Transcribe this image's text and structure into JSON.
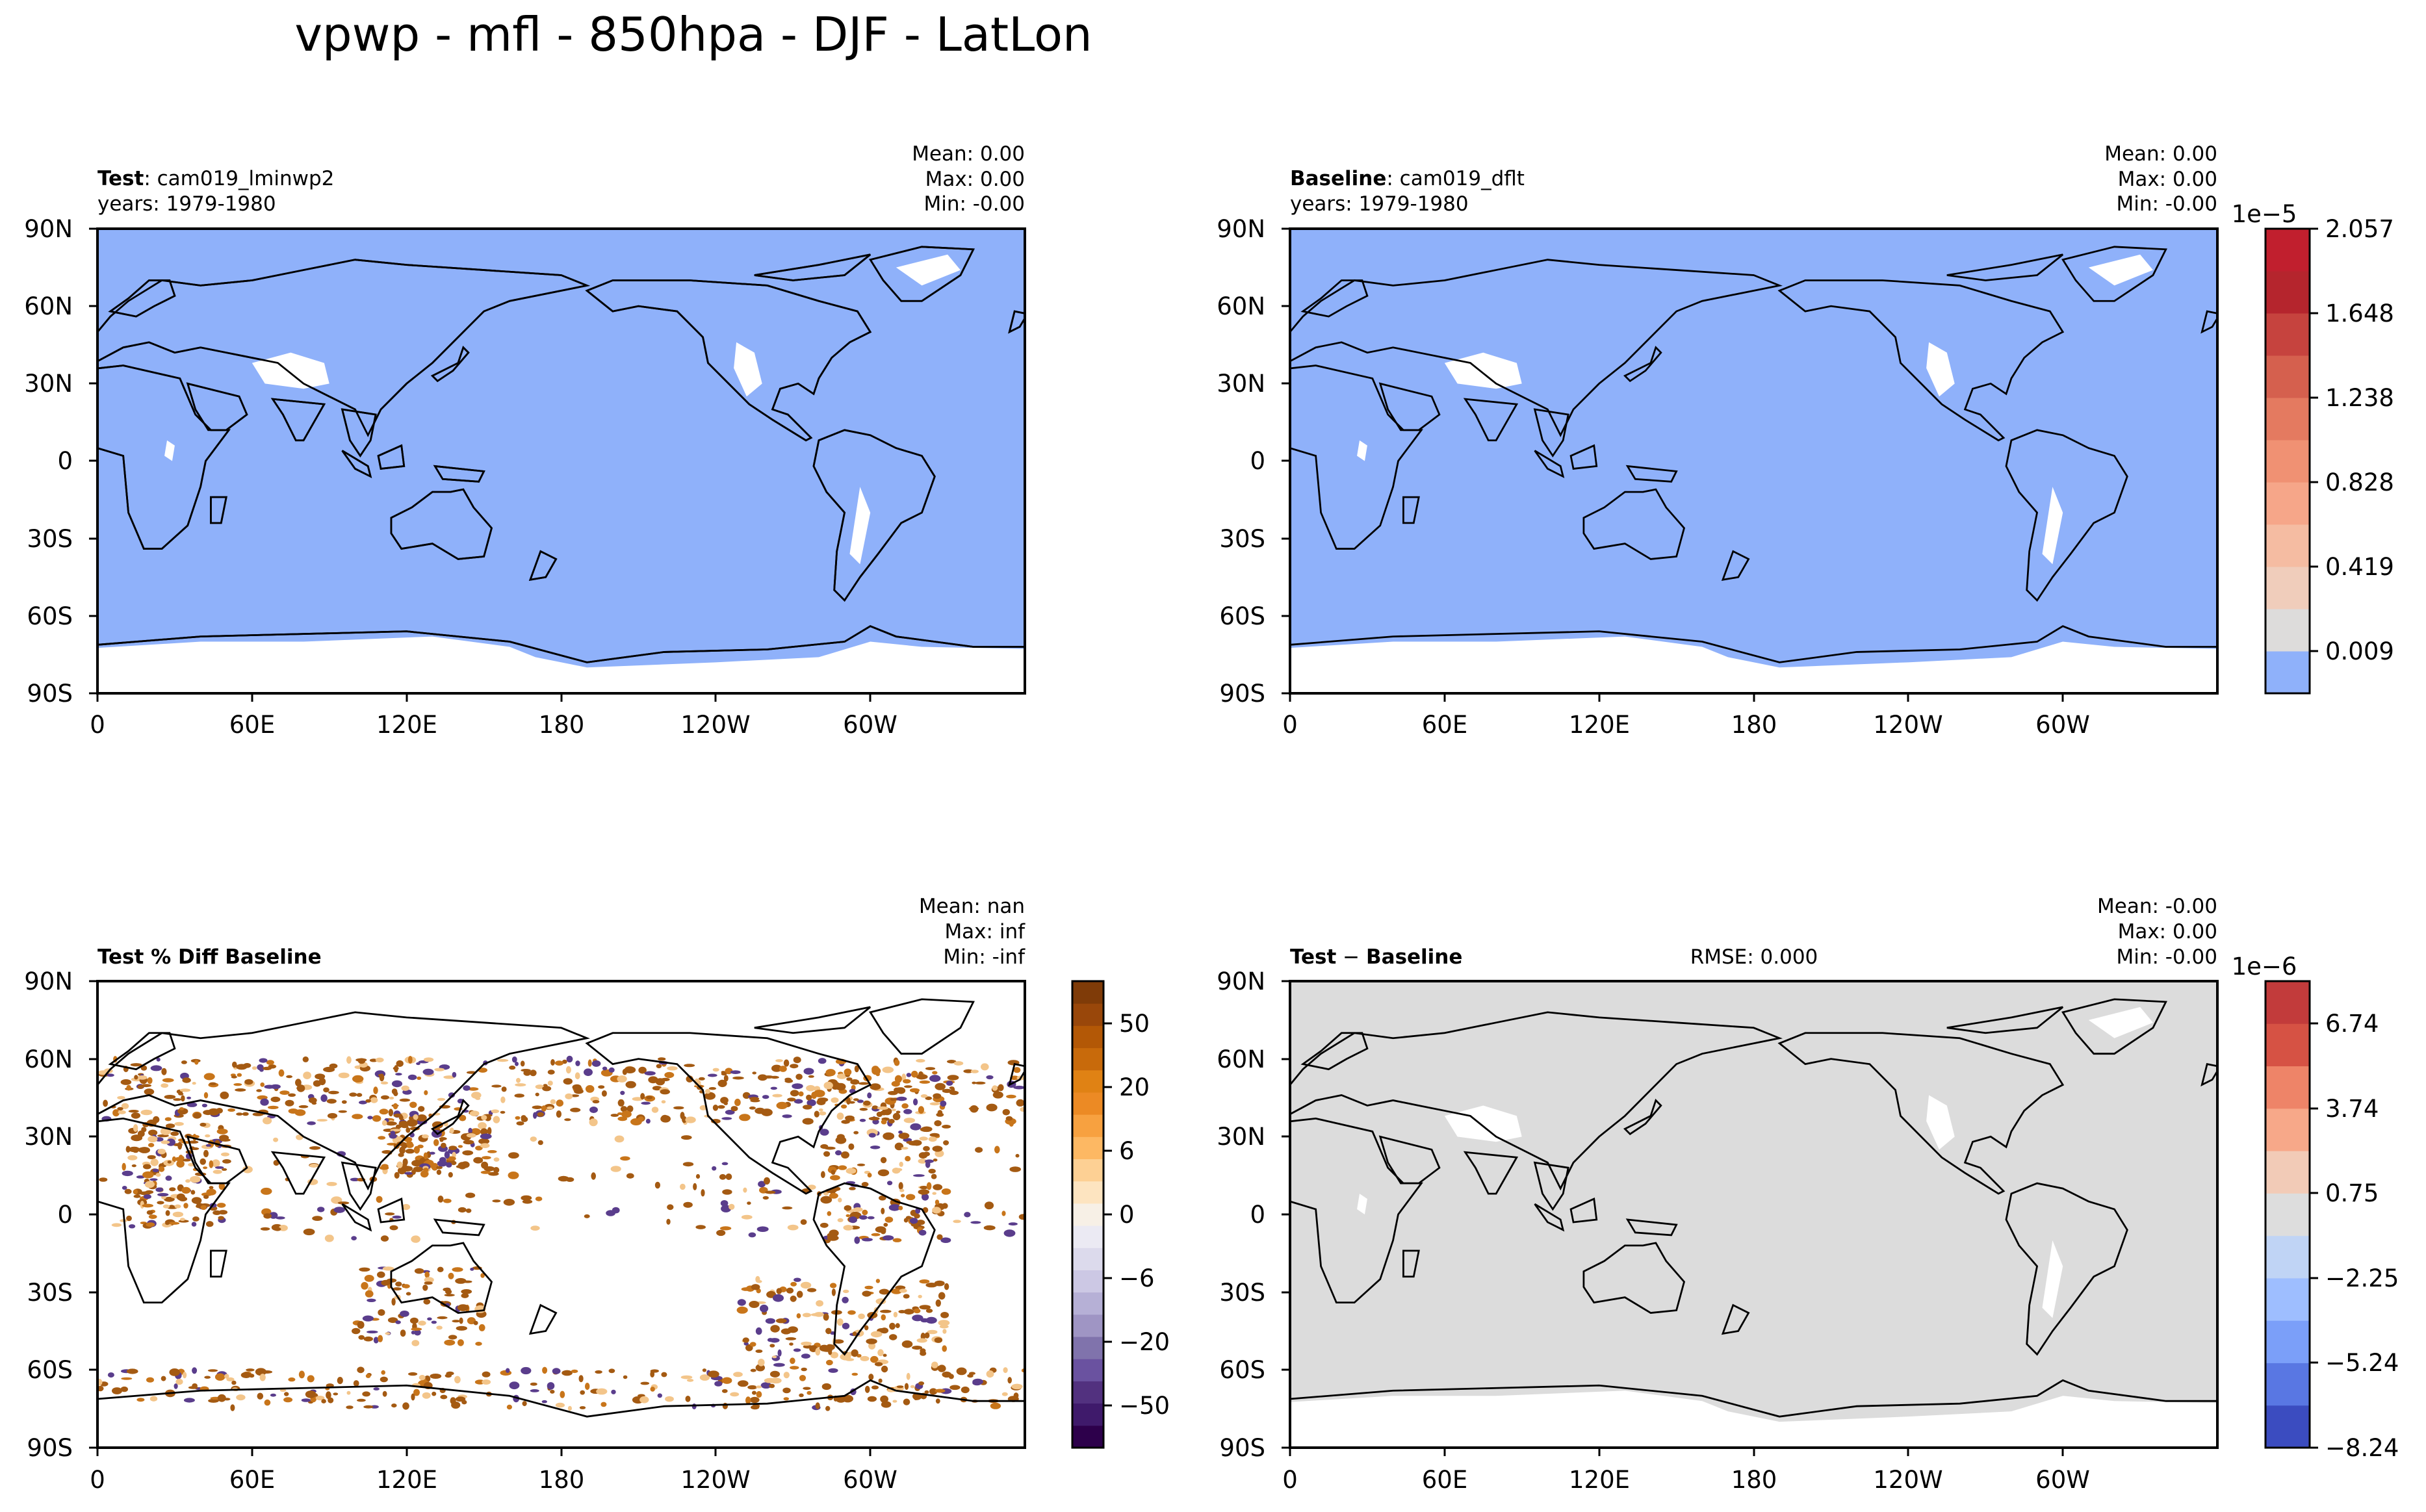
{
  "figure_title": "vpwp - mfl - 850hpa - DJF - LatLon",
  "colors": {
    "ocean_blue": "#8fb1fa",
    "land_white": "#ffffff",
    "diff_grey": "#dcdcdc",
    "coast": "#000000",
    "brown": "#a45a12",
    "purple": "#5a3d8c"
  },
  "chart_data": [
    {
      "type": "heatmap",
      "panel": "test",
      "label_bold": "Test",
      "label_rest": ": cam019_lminwp2",
      "years": "years: 1979-1980",
      "stats": [
        "Mean:  0.00",
        "Max:  0.00",
        "Min: -0.00"
      ],
      "xticks": [
        "0",
        "60E",
        "120E",
        "180",
        "120W",
        "60W"
      ],
      "yticks": [
        "90N",
        "60N",
        "30N",
        "0",
        "30S",
        "60S",
        "90S"
      ],
      "xlim": [
        0,
        360
      ],
      "ylim": [
        -90,
        90
      ]
    },
    {
      "type": "heatmap",
      "panel": "baseline",
      "label_bold": "Baseline",
      "label_rest": ": cam019_dflt",
      "years": "years: 1979-1980",
      "stats": [
        "Mean:  0.00",
        "Max:  0.00",
        "Min: -0.00"
      ],
      "xticks": [
        "0",
        "60E",
        "120E",
        "180",
        "120W",
        "60W"
      ],
      "yticks": [
        "90N",
        "60N",
        "30N",
        "0",
        "30S",
        "60S",
        "90S"
      ],
      "xlim": [
        0,
        360
      ],
      "ylim": [
        -90,
        90
      ],
      "colorbar": {
        "exponent": "1e−5",
        "ticks": [
          "2.057",
          "1.648",
          "1.238",
          "0.828",
          "0.419",
          "0.009"
        ],
        "colors": [
          "#8fb1fa",
          "#dddcdb",
          "#f0cdbb",
          "#f5bca2",
          "#f6a689",
          "#f09173",
          "#e47a60",
          "#d5604e",
          "#c6433e",
          "#b5252d",
          "#c11f2e"
        ]
      }
    },
    {
      "type": "heatmap",
      "panel": "pctdiff",
      "label_bold": "Test % Diff Baseline",
      "stats": [
        "Mean:   nan",
        "Max:   inf",
        "Min:  -inf"
      ],
      "xticks": [
        "0",
        "60E",
        "120E",
        "180",
        "120W",
        "60W"
      ],
      "yticks": [
        "90N",
        "60N",
        "30N",
        "0",
        "30S",
        "60S",
        "90S"
      ],
      "xlim": [
        0,
        360
      ],
      "ylim": [
        -90,
        90
      ],
      "colorbar": {
        "exponent": "",
        "ticks": [
          "50",
          "20",
          "6",
          "0",
          "−6",
          "−20",
          "−50"
        ],
        "colors": [
          "#2d004b",
          "#3f1a6b",
          "#52317f",
          "#6a52a0",
          "#8073ac",
          "#9f95c4",
          "#b6b0d6",
          "#ccc8e4",
          "#dcdaec",
          "#ebeaf3",
          "#f7f0e6",
          "#fde4c0",
          "#fdd094",
          "#fdb863",
          "#f7a140",
          "#ec8a24",
          "#e08214",
          "#c86a0b",
          "#b35806",
          "#99470a",
          "#7f3b08"
        ]
      }
    },
    {
      "type": "heatmap",
      "panel": "diff",
      "label_bold": "Test",
      "label_sep": " − ",
      "label_bold2": "Baseline",
      "rmse": "RMSE: 0.000",
      "stats": [
        "Mean: -0.00",
        "Max:  0.00",
        "Min: -0.00"
      ],
      "xticks": [
        "0",
        "60E",
        "120E",
        "180",
        "120W",
        "60W"
      ],
      "yticks": [
        "90N",
        "60N",
        "30N",
        "0",
        "30S",
        "60S",
        "90S"
      ],
      "xlim": [
        0,
        360
      ],
      "ylim": [
        -90,
        90
      ],
      "colorbar": {
        "exponent": "1e−6",
        "ticks": [
          "6.74",
          "3.74",
          "0.75",
          "−2.25",
          "−5.24",
          "−8.24"
        ],
        "colors": [
          "#3b4cc0",
          "#5977e3",
          "#7b9ff9",
          "#9ebeff",
          "#c0d4f5",
          "#dddddd",
          "#f2cbb7",
          "#f7a889",
          "#ee8468",
          "#d65244",
          "#c23b3b"
        ]
      }
    }
  ]
}
